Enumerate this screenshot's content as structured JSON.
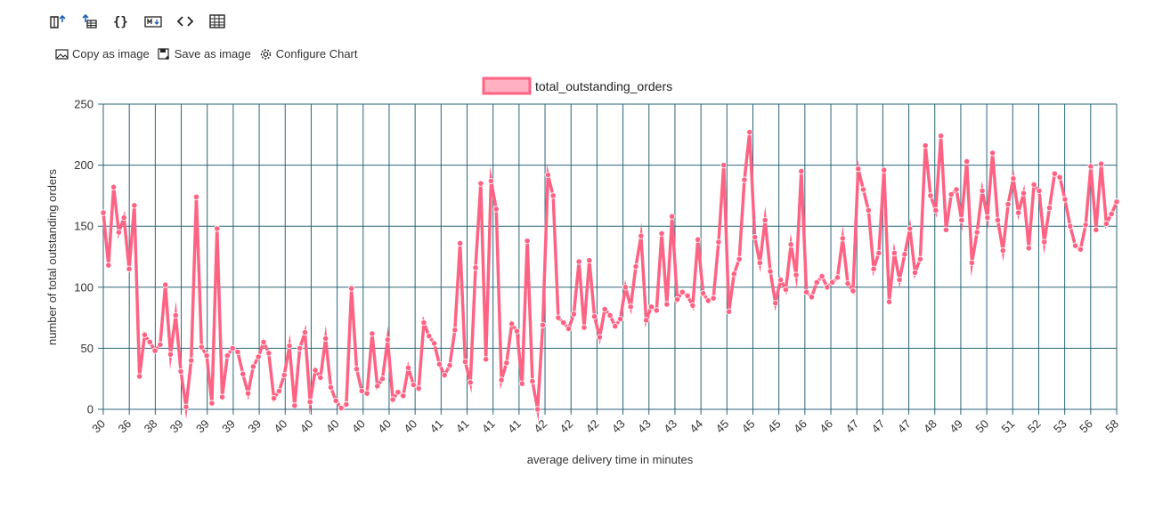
{
  "toolbar": {
    "icons": [
      "results-grid-icon",
      "export-data-icon",
      "json-icon",
      "markdown-icon",
      "code-icon",
      "table-icon"
    ]
  },
  "actions": {
    "copy_label": "Copy as image",
    "save_label": "Save as image",
    "configure_label": "Configure Chart"
  },
  "colors": {
    "series": "#ff6384",
    "series_fill": "#ffb1c1",
    "grid": "#2a6478"
  },
  "chart_data": {
    "type": "line",
    "xlabel": "average delivery time in minutes",
    "ylabel": "number of total outstanding orders",
    "ylim": [
      0,
      250
    ],
    "yticks": [
      0,
      50,
      100,
      150,
      200,
      250
    ],
    "grid": true,
    "legend_position": "top-center",
    "x_tick_labels": [
      "30",
      "36",
      "38",
      "39",
      "39",
      "39",
      "39",
      "40",
      "40",
      "40",
      "40",
      "40",
      "40",
      "41",
      "41",
      "41",
      "41",
      "42",
      "42",
      "42",
      "43",
      "43",
      "43",
      "44",
      "45",
      "45",
      "45",
      "46",
      "46",
      "47",
      "47",
      "47",
      "48",
      "49",
      "50",
      "51",
      "52",
      "53",
      "56",
      "58"
    ],
    "series": [
      {
        "name": "total_outstanding_orders",
        "values": [
          161,
          118,
          182,
          145,
          157,
          115,
          167,
          27,
          61,
          55,
          48,
          53,
          102,
          45,
          77,
          31,
          2,
          40,
          174,
          51,
          44,
          5,
          148,
          10,
          44,
          50,
          47,
          29,
          13,
          35,
          43,
          55,
          46,
          9,
          15,
          28,
          52,
          3,
          50,
          63,
          6,
          32,
          26,
          58,
          18,
          7,
          1,
          4,
          99,
          33,
          15,
          13,
          62,
          19,
          25,
          57,
          8,
          14,
          11,
          34,
          20,
          17,
          71,
          60,
          54,
          37,
          28,
          36,
          65,
          136,
          39,
          22,
          116,
          185,
          41,
          187,
          164,
          24,
          38,
          70,
          64,
          21,
          138,
          23,
          0,
          69,
          192,
          175,
          75,
          71,
          66,
          78,
          121,
          67,
          122,
          76,
          59,
          82,
          77,
          68,
          74,
          100,
          84,
          117,
          142,
          73,
          84,
          81,
          144,
          86,
          158,
          90,
          96,
          93,
          85,
          139,
          95,
          89,
          91,
          137,
          200,
          80,
          111,
          123,
          188,
          227,
          141,
          120,
          155,
          113,
          87,
          106,
          98,
          135,
          110,
          195,
          96,
          92,
          104,
          109,
          100,
          104,
          108,
          140,
          103,
          97,
          197,
          180,
          163,
          115,
          128,
          196,
          88,
          128,
          106,
          127,
          148,
          112,
          123,
          216,
          175,
          163,
          224,
          147,
          176,
          180,
          155,
          203,
          120,
          145,
          179,
          157,
          210,
          155,
          130,
          168,
          189,
          161,
          177,
          132,
          184,
          179,
          137,
          165,
          193,
          190,
          172,
          150,
          134,
          131,
          151,
          199,
          147,
          201,
          152,
          160,
          170
        ]
      }
    ]
  }
}
